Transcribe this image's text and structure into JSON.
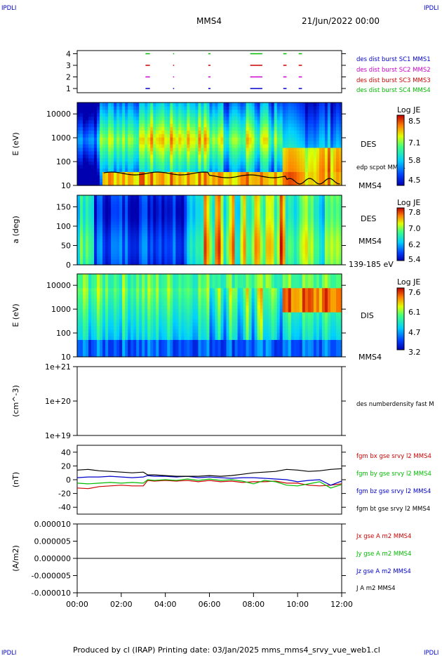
{
  "header": {
    "corner_left": "IPDLI",
    "corner_right": "IPDLI",
    "spacecraft": "MMS4",
    "date": "21/Jun/2022 00:00"
  },
  "footer": {
    "text": "Produced by cl (IRAP)   Printing date: 03/Jan/2025   mms_mms4_srvy_vue_web1.cl",
    "corner_left": "IPDLI",
    "corner_right": "IPDLI"
  },
  "time_axis": {
    "ticks": [
      "00:00",
      "02:00",
      "04:00",
      "06:00",
      "08:00",
      "10:00",
      "12:00"
    ]
  },
  "colors": {
    "blue": "#0000cc",
    "magenta": "#cc00cc",
    "red": "#cc0000",
    "green": "#00bb00",
    "black": "#000000"
  },
  "chart_data": [
    {
      "type": "line",
      "panel": "burst_availability",
      "yticks": [
        "1",
        "2",
        "3",
        "4"
      ],
      "series": [
        {
          "name": "des dist burst SC1 MMS1",
          "color": "#0000cc",
          "level": 1
        },
        {
          "name": "des dist burst SC2 MMS2",
          "color": "#cc00cc",
          "level": 2
        },
        {
          "name": "des dist burst SC3 MMS3",
          "color": "#cc0000",
          "level": 3
        },
        {
          "name": "des dist burst SC4 MMS4",
          "color": "#00bb00",
          "level": 4
        }
      ],
      "intervals_hours": [
        [
          3.1,
          3.3
        ],
        [
          4.35,
          4.4
        ],
        [
          5.95,
          6.05
        ],
        [
          7.85,
          8.4
        ],
        [
          9.35,
          9.5
        ],
        [
          10.05,
          10.2
        ]
      ]
    },
    {
      "type": "heatmap",
      "panel": "des_energy",
      "ylabel": "E (eV)",
      "yticks": [
        "10",
        "100",
        "1000",
        "10000"
      ],
      "label": "DES",
      "sublabel": "MMS4",
      "overlay_label": "edp scpot MMS4",
      "colorbar": {
        "title": "Log JE",
        "ticks": [
          "8.5",
          "7.1",
          "5.8",
          "4.5"
        ]
      }
    },
    {
      "type": "heatmap",
      "panel": "des_pitch",
      "ylabel": "a (deg)",
      "yticks": [
        "0",
        "50",
        "100",
        "150"
      ],
      "label": "DES",
      "sublabel": "MMS4",
      "range_label": "139-185 eV",
      "colorbar": {
        "title": "Log JE",
        "ticks": [
          "7.8",
          "7.0",
          "6.2",
          "5.4"
        ]
      }
    },
    {
      "type": "heatmap",
      "panel": "dis_energy",
      "ylabel": "E (eV)",
      "yticks": [
        "10",
        "100",
        "1000",
        "10000"
      ],
      "label": "DIS",
      "sublabel": "MMS4",
      "colorbar": {
        "title": "Log JE",
        "ticks": [
          "7.6",
          "6.1",
          "4.7",
          "3.2"
        ]
      }
    },
    {
      "type": "line",
      "panel": "density",
      "ylabel": "(cm^-3)",
      "yticks": [
        "1e+19",
        "1e+20",
        "1e+21"
      ],
      "series": [
        {
          "name": "des numberdensity fast M",
          "color": "#000000",
          "values": []
        }
      ]
    },
    {
      "type": "line",
      "panel": "magnetic_field",
      "ylabel": "(nT)",
      "yticks": [
        "-40",
        "-20",
        "0",
        "20",
        "40"
      ],
      "ylim": [
        -50,
        50
      ],
      "x_hours": [
        0,
        0.5,
        1,
        1.5,
        2,
        2.5,
        3,
        3.2,
        3.5,
        4,
        4.5,
        5,
        5.5,
        6,
        6.5,
        7,
        7.5,
        8,
        8.5,
        9,
        9.5,
        10,
        10.5,
        11,
        11.5,
        12
      ],
      "series": [
        {
          "name": "fgm bx gse srvy l2 MMS4",
          "color": "#cc0000",
          "values": [
            -12,
            -13,
            -10,
            -9,
            -8,
            -9,
            -9,
            -1,
            -2,
            -1,
            -2,
            -1,
            -3,
            -1,
            -3,
            -2,
            -4,
            -3,
            -3,
            -2,
            -5,
            -5,
            -8,
            -9,
            -8,
            -6
          ]
        },
        {
          "name": "fgm by gse srvy l2 MMS4",
          "color": "#00bb00",
          "values": [
            -5,
            -6,
            -5,
            -4,
            -5,
            -4,
            -5,
            0,
            -1,
            0,
            -1,
            1,
            -1,
            1,
            -1,
            0,
            -2,
            -6,
            -1,
            -3,
            -8,
            -9,
            -6,
            -3,
            -12,
            -7
          ]
        },
        {
          "name": "fgm bz gse srvy l2 MMS4",
          "color": "#0000cc",
          "values": [
            3,
            4,
            4,
            5,
            4,
            3,
            4,
            6,
            5,
            5,
            4,
            5,
            3,
            4,
            3,
            2,
            3,
            3,
            2,
            1,
            0,
            -3,
            -1,
            0,
            -8,
            -2
          ]
        },
        {
          "name": "fgm bt gse srvy l2 MMS4",
          "color": "#000000",
          "values": [
            14,
            15,
            13,
            12,
            11,
            10,
            11,
            7,
            7,
            6,
            5,
            5,
            5,
            6,
            5,
            6,
            8,
            10,
            11,
            12,
            15,
            14,
            12,
            13,
            15,
            16
          ]
        }
      ]
    },
    {
      "type": "line",
      "panel": "current_density",
      "ylabel": "(A/m2)",
      "yticks": [
        "-0.000010",
        "-0.000005",
        "0.000000",
        "0.000005",
        "0.000010"
      ],
      "ylim": [
        -1e-05,
        1e-05
      ],
      "series": [
        {
          "name": "Jx gse A m2 MMS4",
          "color": "#cc0000",
          "values": [
            0,
            0
          ]
        },
        {
          "name": "Jy gse A m2 MMS4",
          "color": "#00bb00",
          "values": [
            0,
            0
          ]
        },
        {
          "name": "Jz gse A m2 MMS4",
          "color": "#0000cc",
          "values": [
            0,
            0
          ]
        },
        {
          "name": "J A m2 MMS4",
          "color": "#000000",
          "values": [
            0,
            0
          ]
        }
      ]
    }
  ]
}
